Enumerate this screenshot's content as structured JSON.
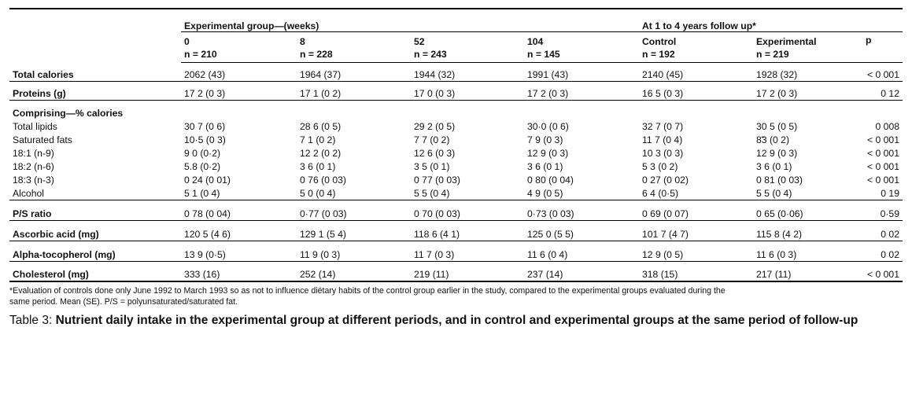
{
  "groups": {
    "experimental": "Experimental group—(weeks)",
    "followup": "At 1 to 4 years follow up*"
  },
  "columns": [
    {
      "name": "0",
      "n": "n = 210"
    },
    {
      "name": "8",
      "n": "n = 228"
    },
    {
      "name": "52",
      "n": "n = 243"
    },
    {
      "name": "104",
      "n": "n = 145"
    },
    {
      "name": "Control",
      "n": "n = 192"
    },
    {
      "name": "Experimental",
      "n": "n = 219"
    },
    {
      "name": "p",
      "n": ""
    }
  ],
  "rows": {
    "total_calories": {
      "label": "Total calories",
      "values": [
        "2062 (43)",
        "1964 (37)",
        "1944 (32)",
        "1991 (43)",
        "2140 (45)",
        "1928 (32)",
        "< 0 001"
      ]
    },
    "proteins": {
      "label": "Proteins (g)",
      "values": [
        "17 2 (0 3)",
        "17 1 (0 2)",
        "17 0 (0 3)",
        "17 2 (0 3)",
        "16 5 (0 3)",
        "17 2 (0 3)",
        "0 12"
      ]
    },
    "comprising": {
      "label": "Comprising—% calories"
    },
    "total_lipids": {
      "label": "Total lipids",
      "values": [
        "30 7 (0 6)",
        "28 6 (0 5)",
        "29 2 (0 5)",
        "30·0 (0 6)",
        "32 7 (0 7)",
        "30 5 (0 5)",
        "0 008"
      ]
    },
    "saturated_fats": {
      "label": "Saturated fats",
      "values": [
        "10·5 (0 3)",
        "7 1 (0 2)",
        "7 7 (0 2)",
        "7 9 (0 3)",
        "11 7 (0 4)",
        "8̃3 (0 2)",
        "< 0 001"
      ]
    },
    "fa_18_1": {
      "label": "18:1 (n-9)",
      "values": [
        "9 0 (0·2)",
        "12 2 (0 2)",
        "12 6 (0 3)",
        "12 9 (0 3)",
        "10 3 (0 3)",
        "12 9 (0 3)",
        "< 0 001"
      ]
    },
    "fa_18_2": {
      "label": "18:2 (n-6)",
      "values": [
        "5.8 (0·2)",
        "3 6 (0 1)",
        "3 5 (0 1)",
        "3 6 (0 1)",
        "5 3 (0 2)",
        "3 6 (0 1)",
        "< 0 001"
      ]
    },
    "fa_18_3": {
      "label": "18:3 (n-3)",
      "values": [
        "0 24 (0 01)",
        "0 76 (0 03)",
        "0 77 (0 03)",
        "0 80 (0 04)",
        "0 27 (0 02)",
        "0 81 (0 03)",
        "< 0 001"
      ]
    },
    "alcohol": {
      "label": "Alcohol",
      "values": [
        "5 1 (0 4)",
        "5 0 (0 4)",
        "5 5 (0 4)",
        "4 9 (0 5)",
        "6 4 (0·5)",
        "5 5 (0 4)",
        "0 19"
      ]
    },
    "ps_ratio": {
      "label": "P/S ratio",
      "values": [
        "0 78 (0 04)",
        "0·77 (0 03)",
        "0 70 (0 03)",
        "0·73 (0 03)",
        "0 69 (0 07)",
        "0 65 (0·06)",
        "0·59"
      ]
    },
    "ascorbic": {
      "label": "Ascorbic acid (mg)",
      "values": [
        "120 5 (4 6)",
        "129 1 (5 4)",
        "118 6 (4 1)",
        "125 0 (5 5)",
        "101 7 (4 7)",
        "115 8 (4 2)",
        "0 02"
      ]
    },
    "tocopherol": {
      "label": "Alpha-tocopherol (mg)",
      "values": [
        "13 9 (0·5)",
        "11 9 (0 3)",
        "11 7 (0 3)",
        "11 6 (0 4)",
        "12 9 (0 5)",
        "11 6 (0 3)",
        "0 02"
      ]
    },
    "cholesterol": {
      "label": "Cholesterol (mg)",
      "values": [
        "333 (16)",
        "252 (14)",
        "219 (11)",
        "237 (14)",
        "318 (15)",
        "217 (11)",
        "< 0 001"
      ]
    }
  },
  "footnote": {
    "line1": "*Evaluation of controls done only June 1992 to March 1993 so as not to influence diëtary habits of the control group earlier in the study, compared to the experimental groups evaluated during the",
    "line2": "same period. Mean (SE). P/S = polyunsaturated/saturated fat."
  },
  "caption": {
    "label": "Table 3: ",
    "title": "Nutrient daily intake in the experimental group at different periods, and in control and experimental groups at the same period of follow-up"
  }
}
